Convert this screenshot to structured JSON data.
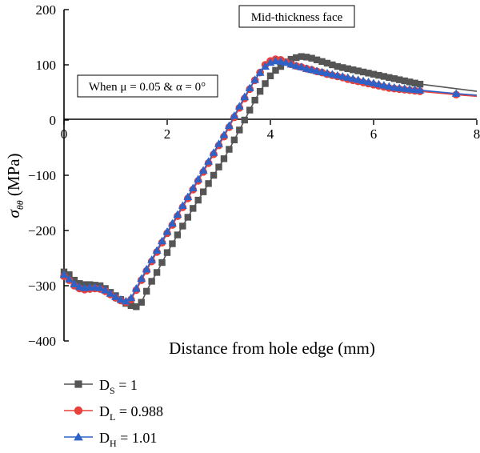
{
  "chart_data": {
    "type": "line",
    "xlabel": "Distance from hole edge (mm)",
    "ylabel": "σθθ (MPa)",
    "xlim": [
      0,
      8
    ],
    "ylim": [
      -400,
      200
    ],
    "x_ticks": [
      0,
      2,
      4,
      6,
      8
    ],
    "y_ticks": [
      200,
      100,
      0,
      -100,
      -200,
      -300,
      -400
    ],
    "y_tick_labels": [
      "200",
      "100",
      "0",
      "−100",
      "−200",
      "−300",
      "−400"
    ],
    "annotations": [
      {
        "text": "Mid-thickness face"
      },
      {
        "text": "When μ = 0.05 & α = 0°"
      }
    ],
    "grid": false,
    "legend_position": "bottom-left, below plot",
    "series": [
      {
        "name": "DS = 1",
        "legend_main": "D",
        "legend_sub": "S",
        "legend_value": " = 1",
        "color": "#555555",
        "marker": "square",
        "x": [
          0,
          0.1,
          0.2,
          0.3,
          0.4,
          0.5,
          0.6,
          0.7,
          0.8,
          0.9,
          1.0,
          1.1,
          1.2,
          1.3,
          1.4,
          1.5,
          1.6,
          1.7,
          1.8,
          1.9,
          2.0,
          2.1,
          2.2,
          2.3,
          2.4,
          2.5,
          2.6,
          2.7,
          2.8,
          2.9,
          3.0,
          3.1,
          3.2,
          3.3,
          3.4,
          3.5,
          3.6,
          3.7,
          3.8,
          3.9,
          4.0,
          4.1,
          4.2,
          4.3,
          4.4,
          4.5,
          4.6,
          4.7,
          4.8,
          4.9,
          5.0,
          5.1,
          5.2,
          5.3,
          5.4,
          5.5,
          5.6,
          5.7,
          5.8,
          5.9,
          6.0,
          6.1,
          6.2,
          6.3,
          6.4,
          6.5,
          6.6,
          6.7,
          6.8,
          6.9,
          8.0
        ],
        "y": [
          -275,
          -280,
          -290,
          -296,
          -298,
          -298,
          -299,
          -300,
          -305,
          -312,
          -318,
          -325,
          -332,
          -336,
          -338,
          -330,
          -310,
          -292,
          -276,
          -258,
          -240,
          -224,
          -208,
          -192,
          -176,
          -160,
          -145,
          -130,
          -115,
          -100,
          -85,
          -70,
          -53,
          -36,
          -18,
          0,
          18,
          36,
          52,
          66,
          80,
          90,
          97,
          105,
          110,
          113,
          115,
          114,
          112,
          109,
          106,
          103,
          100,
          97,
          95,
          93,
          91,
          89,
          87,
          85,
          83,
          81,
          79,
          77,
          75,
          73,
          71,
          69,
          67,
          65,
          52
        ],
        "draw_markers_until": 6.9
      },
      {
        "name": "DL = 0.988",
        "legend_main": "D",
        "legend_sub": "L",
        "legend_value": " = 0.988",
        "color": "#e8403a",
        "marker": "circle",
        "x": [
          0,
          0.1,
          0.2,
          0.3,
          0.4,
          0.5,
          0.6,
          0.7,
          0.8,
          0.9,
          1.0,
          1.1,
          1.2,
          1.3,
          1.4,
          1.5,
          1.6,
          1.7,
          1.8,
          1.9,
          2.0,
          2.1,
          2.2,
          2.3,
          2.4,
          2.5,
          2.6,
          2.7,
          2.8,
          2.9,
          3.0,
          3.1,
          3.2,
          3.3,
          3.4,
          3.5,
          3.6,
          3.7,
          3.8,
          3.9,
          4.0,
          4.1,
          4.2,
          4.3,
          4.4,
          4.5,
          4.6,
          4.7,
          4.8,
          4.9,
          5.0,
          5.1,
          5.2,
          5.3,
          5.4,
          5.5,
          5.6,
          5.7,
          5.8,
          5.9,
          6.0,
          6.1,
          6.2,
          6.3,
          6.4,
          6.5,
          6.6,
          6.7,
          6.8,
          6.9,
          7.6,
          8.0
        ],
        "y": [
          -283,
          -290,
          -300,
          -305,
          -307,
          -306,
          -305,
          -306,
          -310,
          -316,
          -322,
          -327,
          -330,
          -325,
          -308,
          -290,
          -273,
          -256,
          -239,
          -222,
          -205,
          -190,
          -174,
          -158,
          -142,
          -126,
          -110,
          -94,
          -78,
          -62,
          -46,
          -30,
          -13,
          5,
          22,
          39,
          56,
          72,
          86,
          100,
          107,
          110,
          109,
          105,
          101,
          98,
          96,
          93,
          91,
          88,
          86,
          83,
          81,
          79,
          77,
          74,
          72,
          70,
          68,
          66,
          64,
          62,
          60,
          58,
          57,
          56,
          55,
          54,
          53,
          52,
          46,
          43
        ],
        "draw_markers_until": 7.6
      },
      {
        "name": "DH = 1.01",
        "legend_main": "D",
        "legend_sub": "H",
        "legend_value": " = 1.01",
        "color": "#2e62c6",
        "marker": "triangle",
        "x": [
          0,
          0.1,
          0.2,
          0.3,
          0.4,
          0.5,
          0.6,
          0.7,
          0.8,
          0.9,
          1.0,
          1.1,
          1.2,
          1.3,
          1.4,
          1.5,
          1.6,
          1.7,
          1.8,
          1.9,
          2.0,
          2.1,
          2.2,
          2.3,
          2.4,
          2.5,
          2.6,
          2.7,
          2.8,
          2.9,
          3.0,
          3.1,
          3.2,
          3.3,
          3.4,
          3.5,
          3.6,
          3.7,
          3.8,
          3.9,
          4.0,
          4.1,
          4.2,
          4.3,
          4.4,
          4.5,
          4.6,
          4.7,
          4.8,
          4.9,
          5.0,
          5.1,
          5.2,
          5.3,
          5.4,
          5.5,
          5.6,
          5.7,
          5.8,
          5.9,
          6.0,
          6.1,
          6.2,
          6.3,
          6.4,
          6.5,
          6.6,
          6.7,
          6.8,
          6.9,
          7.6,
          8.0
        ],
        "y": [
          -280,
          -288,
          -297,
          -302,
          -304,
          -303,
          -303,
          -304,
          -308,
          -314,
          -320,
          -325,
          -328,
          -322,
          -305,
          -287,
          -270,
          -253,
          -236,
          -219,
          -202,
          -187,
          -171,
          -155,
          -139,
          -123,
          -107,
          -91,
          -75,
          -59,
          -43,
          -27,
          -10,
          8,
          25,
          42,
          58,
          73,
          86,
          97,
          104,
          107,
          106,
          104,
          101,
          98,
          96,
          93,
          91,
          89,
          87,
          85,
          83,
          81,
          79,
          77,
          75,
          73,
          71,
          69,
          67,
          65,
          63,
          61,
          59,
          58,
          57,
          56,
          55,
          54,
          48,
          45
        ],
        "draw_markers_until": 7.6
      }
    ]
  }
}
